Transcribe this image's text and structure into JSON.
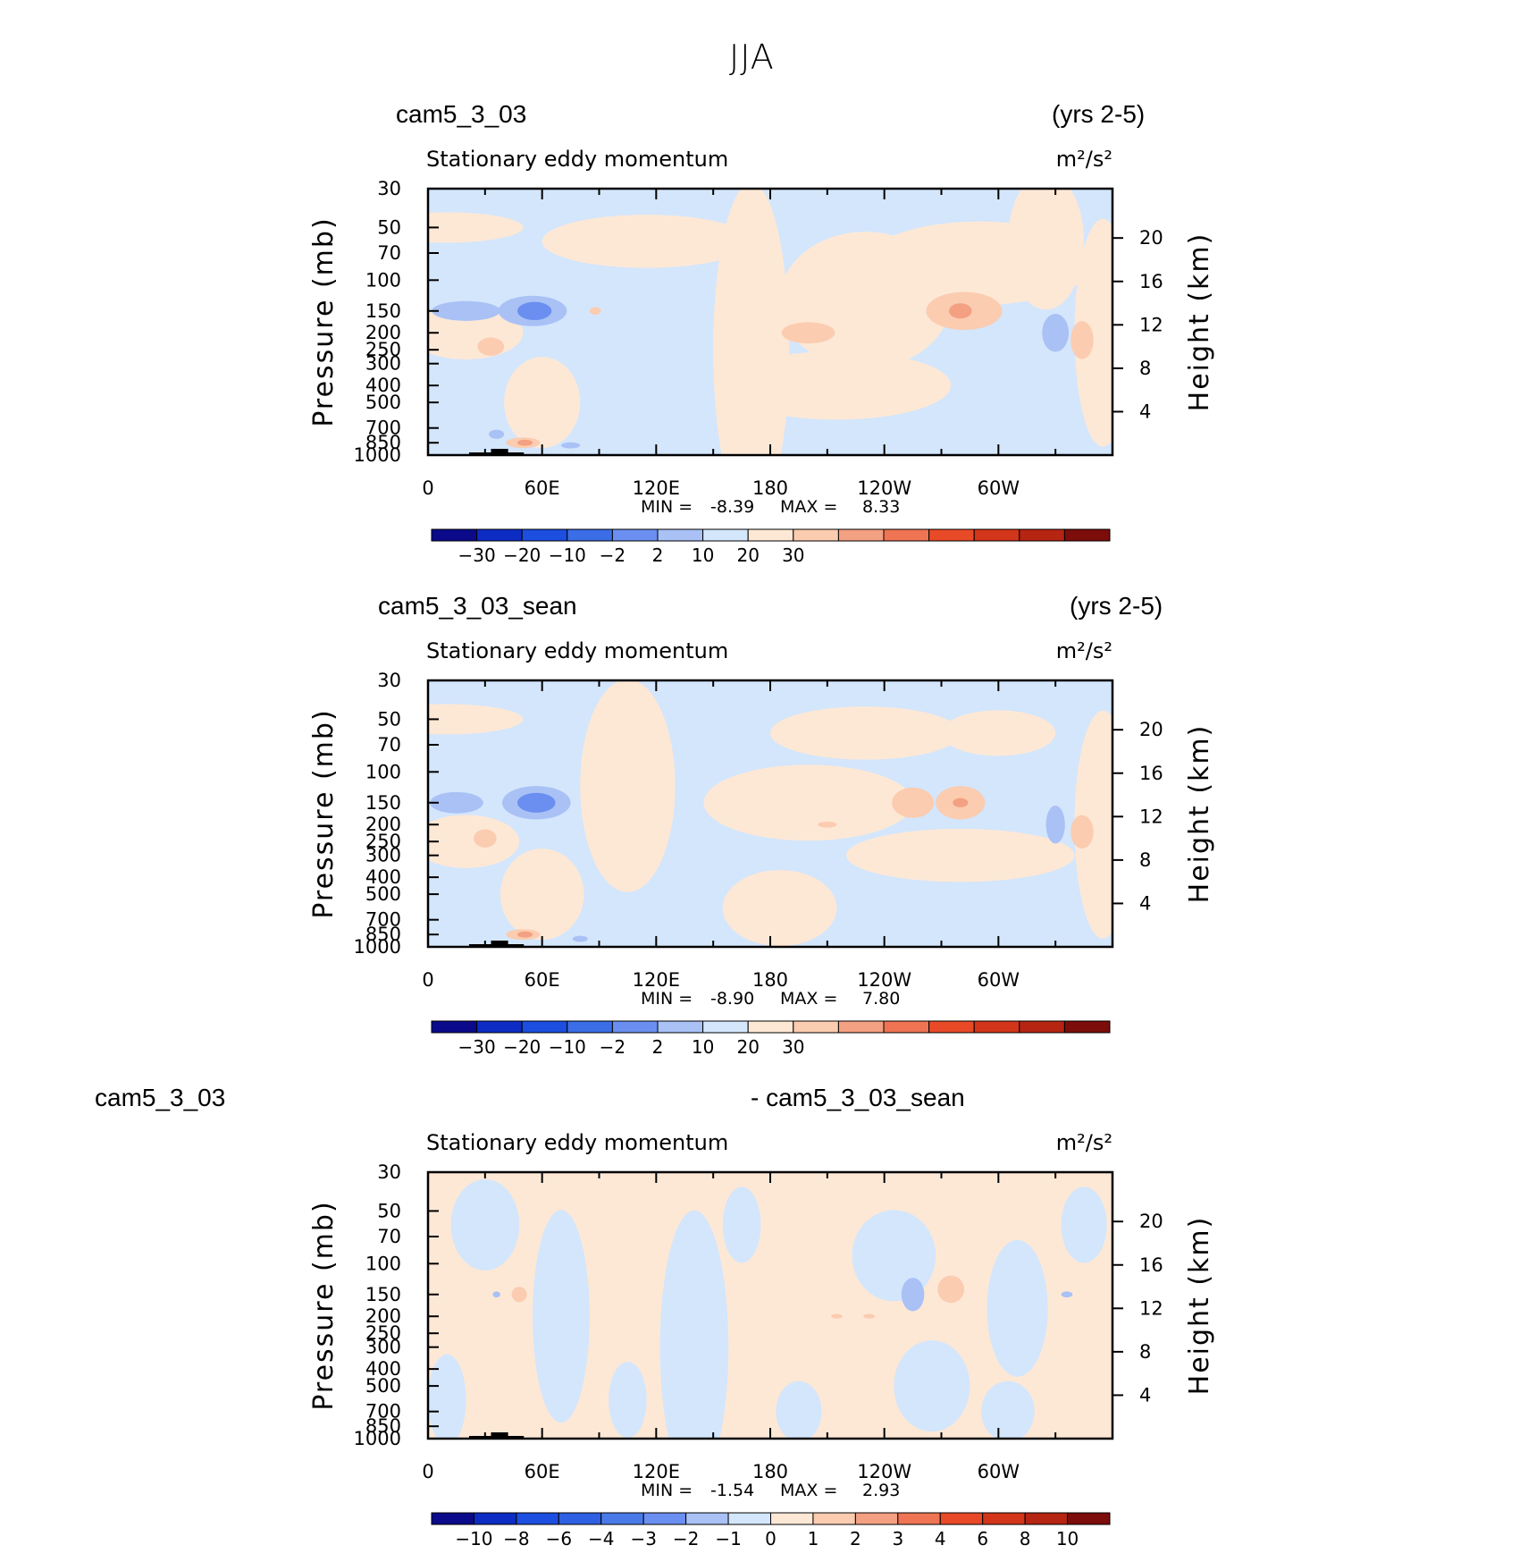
{
  "page_title": "JJA",
  "panels": [
    {
      "id": "panel-1",
      "left_label": "cam5_3_03",
      "right_label": "(yrs 2-5)",
      "var_label": "Stationary eddy momentum",
      "units_label": "m²/s²",
      "min_label": "MIN =",
      "min_value": "-8.39",
      "max_label": "MAX =",
      "max_value": "8.33",
      "colorbar": {
        "colors": [
          "#0a0a8a",
          "#0d2cc4",
          "#1c4ee0",
          "#3a6de6",
          "#6a8ff0",
          "#a9c1f5",
          "#d3e6fc",
          "#fde8d6",
          "#fbccb0",
          "#f4a082",
          "#ee7453",
          "#e84a28",
          "#d2351a",
          "#b62412",
          "#7c0d0a"
        ],
        "ticks": [
          "-30",
          "-20",
          "-10",
          "-2",
          "2",
          "10",
          "20",
          "30"
        ]
      }
    },
    {
      "id": "panel-2",
      "left_label": "cam5_3_03_sean",
      "right_label": "(yrs 2-5)",
      "var_label": "Stationary eddy momentum",
      "units_label": "m²/s²",
      "min_label": "MIN =",
      "min_value": "-8.90",
      "max_label": "MAX =",
      "max_value": "7.80",
      "colorbar": {
        "colors": [
          "#0a0a8a",
          "#0d2cc4",
          "#1c4ee0",
          "#3a6de6",
          "#6a8ff0",
          "#a9c1f5",
          "#d3e6fc",
          "#fde8d6",
          "#fbccb0",
          "#f4a082",
          "#ee7453",
          "#e84a28",
          "#d2351a",
          "#b62412",
          "#7c0d0a"
        ],
        "ticks": [
          "-30",
          "-20",
          "-10",
          "-2",
          "2",
          "10",
          "20",
          "30"
        ]
      }
    },
    {
      "id": "panel-3",
      "left_label": "cam5_3_03",
      "right_label": "- cam5_3_03_sean",
      "var_label": "Stationary eddy momentum",
      "units_label": "m²/s²",
      "min_label": "MIN =",
      "min_value": "-1.54",
      "max_label": "MAX =",
      "max_value": "2.93",
      "colorbar": {
        "colors": [
          "#0a0a8a",
          "#0d2cc4",
          "#1c4ee0",
          "#2f5fe2",
          "#4a7ae8",
          "#6a8ff0",
          "#a9c1f5",
          "#d3e6fc",
          "#fde8d6",
          "#fbccb0",
          "#f4a082",
          "#ee7453",
          "#e84a28",
          "#d2351a",
          "#b62412",
          "#7c0d0a"
        ],
        "ticks": [
          "-10",
          "-8",
          "-6",
          "-4",
          "-3",
          "-2",
          "-1",
          "0",
          "1",
          "2",
          "3",
          "4",
          "6",
          "8",
          "10"
        ]
      }
    }
  ],
  "axes": {
    "ylabel": "Pressure (mb)",
    "y2label": "Height (km)",
    "x_ticks": [
      "0",
      "60E",
      "120E",
      "180",
      "120W",
      "60W"
    ],
    "y_ticks": [
      "30",
      "50",
      "70",
      "100",
      "150",
      "200",
      "250",
      "300",
      "400",
      "500",
      "700",
      "850",
      "1000"
    ],
    "y2_ticks": [
      "20",
      "16",
      "12",
      "8",
      "4"
    ]
  },
  "chart_data": [
    {
      "type": "heatmap",
      "title": "cam5_3_03 (yrs 2-5)",
      "variable": "Stationary eddy momentum",
      "units": "m²/s²",
      "x_range": [
        0,
        360
      ],
      "y_range_mb": [
        1000,
        30
      ],
      "min": -8.39,
      "max": 8.33,
      "contour_levels": [
        -30,
        -20,
        -10,
        -2,
        2,
        10,
        20,
        30
      ],
      "features": [
        {
          "lon": 20,
          "p": 150,
          "sign": "negative"
        },
        {
          "lon": 50,
          "p": 150,
          "sign": "negative"
        },
        {
          "lon": 30,
          "p": 250,
          "sign": "positive"
        },
        {
          "lon": 50,
          "p": 850,
          "sign": "positive"
        },
        {
          "lon": 200,
          "p": 200,
          "sign": "positive"
        },
        {
          "lon": 280,
          "p": 150,
          "sign": "positive"
        },
        {
          "lon": 330,
          "p": 200,
          "sign": "negative"
        },
        {
          "lon": 345,
          "p": 200,
          "sign": "positive"
        }
      ]
    },
    {
      "type": "heatmap",
      "title": "cam5_3_03_sean (yrs 2-5)",
      "variable": "Stationary eddy momentum",
      "units": "m²/s²",
      "x_range": [
        0,
        360
      ],
      "y_range_mb": [
        1000,
        30
      ],
      "min": -8.9,
      "max": 7.8,
      "contour_levels": [
        -30,
        -20,
        -10,
        -2,
        2,
        10,
        20,
        30
      ],
      "features": [
        {
          "lon": 15,
          "p": 150,
          "sign": "negative"
        },
        {
          "lon": 55,
          "p": 150,
          "sign": "negative"
        },
        {
          "lon": 30,
          "p": 250,
          "sign": "positive"
        },
        {
          "lon": 50,
          "p": 850,
          "sign": "positive"
        },
        {
          "lon": 255,
          "p": 150,
          "sign": "positive"
        },
        {
          "lon": 280,
          "p": 150,
          "sign": "positive"
        },
        {
          "lon": 330,
          "p": 200,
          "sign": "negative"
        },
        {
          "lon": 345,
          "p": 200,
          "sign": "positive"
        }
      ]
    },
    {
      "type": "heatmap",
      "title": "cam5_3_03 - cam5_3_03_sean",
      "variable": "Stationary eddy momentum",
      "units": "m²/s²",
      "x_range": [
        0,
        360
      ],
      "y_range_mb": [
        1000,
        30
      ],
      "min": -1.54,
      "max": 2.93,
      "contour_levels": [
        -10,
        -8,
        -6,
        -4,
        -3,
        -2,
        -1,
        0,
        1,
        2,
        3,
        4,
        6,
        8,
        10
      ],
      "features": [
        {
          "lon": 48,
          "p": 150,
          "sign": "positive"
        },
        {
          "lon": 255,
          "p": 150,
          "sign": "negative"
        },
        {
          "lon": 275,
          "p": 150,
          "sign": "positive"
        },
        {
          "lon": 215,
          "p": 200,
          "sign": "positive"
        }
      ]
    }
  ]
}
